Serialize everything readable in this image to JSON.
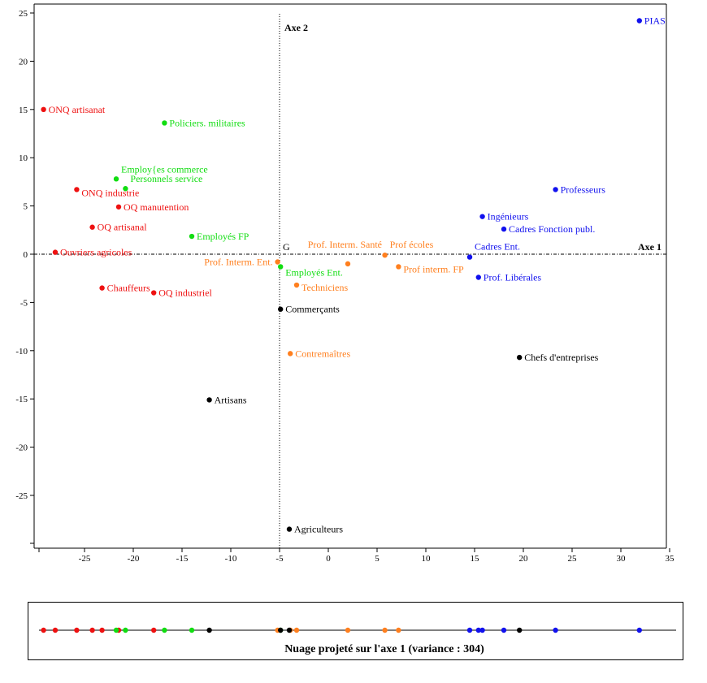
{
  "chart_data": {
    "type": "scatter",
    "title": "",
    "xlabel": "Axe 1",
    "ylabel": "Axe 2",
    "origin_label": "G",
    "xlim": [
      -29.7,
      34.7
    ],
    "ylim": [
      -30.5,
      25.7
    ],
    "xticks": [
      -25,
      -20,
      -15,
      -10,
      -5,
      0,
      5,
      10,
      15,
      20,
      25,
      30,
      35
    ],
    "yticks": [
      25,
      20,
      15,
      10,
      5,
      0,
      -5,
      -10,
      -15,
      -20,
      -25
    ],
    "colors": {
      "red": "#ee1111",
      "green": "#11dd11",
      "orange": "#ff7f1e",
      "blue": "#1111ee",
      "black": "#000000"
    },
    "points": [
      {
        "label": "PIAS",
        "x": 31.9,
        "y": 24.2,
        "color": "blue"
      },
      {
        "label": "Professeurs",
        "x": 23.3,
        "y": 6.7,
        "color": "blue"
      },
      {
        "label": "Ingénieurs",
        "x": 15.8,
        "y": 3.9,
        "color": "blue"
      },
      {
        "label": "Cadres Fonction publ.",
        "x": 18.0,
        "y": 2.6,
        "color": "blue"
      },
      {
        "label": "Cadres Ent.",
        "x": 14.5,
        "y": -0.3,
        "color": "blue"
      },
      {
        "label": "Prof. Libérales",
        "x": 15.4,
        "y": -2.4,
        "color": "blue"
      },
      {
        "label": "ONQ artisanat",
        "x": -29.2,
        "y": 15.0,
        "color": "red"
      },
      {
        "label": "ONQ industrie",
        "x": -25.8,
        "y": 6.7,
        "color": "red"
      },
      {
        "label": "OQ manutention",
        "x": -21.5,
        "y": 4.9,
        "color": "red"
      },
      {
        "label": "OQ artisanal",
        "x": -24.2,
        "y": 2.8,
        "color": "red"
      },
      {
        "label": "Ouvriers agricoles",
        "x": -28.0,
        "y": 0.2,
        "color": "red"
      },
      {
        "label": "Chauffeurs",
        "x": -23.2,
        "y": -3.5,
        "color": "red"
      },
      {
        "label": "OQ industriel",
        "x": -17.9,
        "y": -4.0,
        "color": "red"
      },
      {
        "label": "Policiers. militaires",
        "x": -16.8,
        "y": 13.6,
        "color": "green"
      },
      {
        "label": "Employ{es commerce",
        "x": -21.75,
        "y": 7.8,
        "color": "green"
      },
      {
        "label": "Personnels service",
        "x": -20.8,
        "y": 6.8,
        "color": "green"
      },
      {
        "label": "Employés FP",
        "x": -14.0,
        "y": 1.85,
        "color": "green"
      },
      {
        "label": "Employés Ent.",
        "x": -4.9,
        "y": -1.3,
        "color": "green"
      },
      {
        "label": "Prof. Interm. Ent.",
        "x": -5.2,
        "y": -0.8,
        "color": "orange"
      },
      {
        "label": "Prof écoles",
        "x": 5.8,
        "y": -0.1,
        "color": "orange"
      },
      {
        "label": "Prof. Interm. Santé",
        "x": 2.0,
        "y": -1.0,
        "color": "orange"
      },
      {
        "label": "Prof interm. FP",
        "x": 7.2,
        "y": -1.3,
        "color": "orange"
      },
      {
        "label": "Techniciens",
        "x": -3.25,
        "y": -3.2,
        "color": "orange"
      },
      {
        "label": "Contremaîtres",
        "x": -3.9,
        "y": -10.3,
        "color": "orange"
      },
      {
        "label": "Commerçants",
        "x": -4.9,
        "y": -5.7,
        "color": "black"
      },
      {
        "label": "Chefs d'entreprises",
        "x": 19.6,
        "y": -10.7,
        "color": "black"
      },
      {
        "label": "Artisans",
        "x": -12.2,
        "y": -15.1,
        "color": "black"
      },
      {
        "label": "Agriculteurs",
        "x": -4.0,
        "y": -28.5,
        "color": "black"
      }
    ],
    "projection": {
      "caption": "Nuage projeté sur l'axe 1 (variance : 304)"
    }
  }
}
